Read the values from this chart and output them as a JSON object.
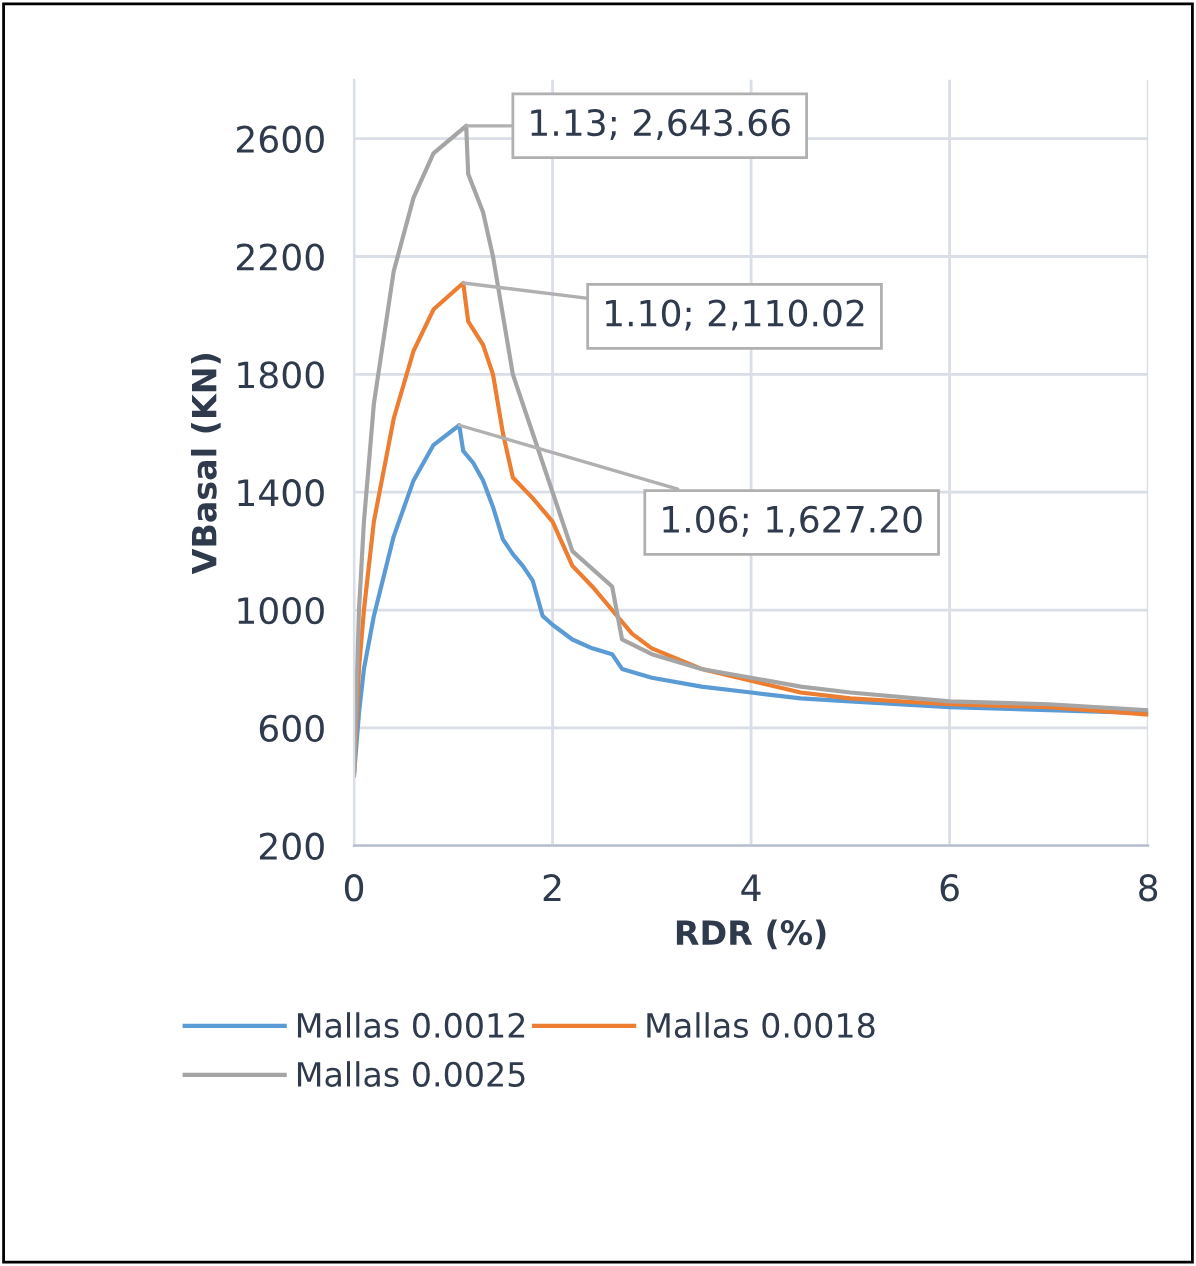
{
  "chart_data": {
    "type": "line",
    "xlabel": "RDR (%)",
    "ylabel": "VBasal (KN)",
    "xlim": [
      0,
      8
    ],
    "xticks": [
      0,
      2,
      4,
      6,
      8
    ],
    "ylim": [
      200,
      2800
    ],
    "yticks": [
      200,
      600,
      1000,
      1400,
      1800,
      2200,
      2600
    ],
    "grid": true,
    "legend": "bottom",
    "marker": "none",
    "line_style": "solid",
    "series": [
      {
        "name": "Mallas 0.0012",
        "color": "#5b9bd5",
        "x": [
          0,
          0.05,
          0.1,
          0.2,
          0.4,
          0.6,
          0.8,
          1.06,
          1.1,
          1.2,
          1.3,
          1.4,
          1.5,
          1.6,
          1.7,
          1.8,
          1.9,
          2.0,
          2.2,
          2.4,
          2.6,
          2.7,
          3.0,
          3.5,
          4,
          4.5,
          5,
          6,
          7,
          8
        ],
        "values": [
          440,
          650,
          800,
          980,
          1250,
          1440,
          1560,
          1627.2,
          1540,
          1500,
          1440,
          1350,
          1240,
          1190,
          1150,
          1100,
          980,
          950,
          900,
          870,
          850,
          800,
          770,
          740,
          720,
          700,
          690,
          670,
          660,
          650
        ]
      },
      {
        "name": "Mallas 0.0018",
        "color": "#ed7d31",
        "x": [
          0,
          0.05,
          0.1,
          0.2,
          0.4,
          0.6,
          0.8,
          1.1,
          1.15,
          1.3,
          1.4,
          1.5,
          1.6,
          1.8,
          2.0,
          2.2,
          2.4,
          2.6,
          2.8,
          3.0,
          3.5,
          4,
          4.5,
          5,
          6,
          7,
          8
        ],
        "values": [
          440,
          800,
          1000,
          1300,
          1650,
          1880,
          2020,
          2110.02,
          1980,
          1900,
          1800,
          1600,
          1450,
          1380,
          1300,
          1150,
          1080,
          1000,
          920,
          870,
          800,
          760,
          720,
          700,
          680,
          670,
          645
        ]
      },
      {
        "name": "Mallas 0.0025",
        "color": "#a5a5a5",
        "x": [
          0,
          0.05,
          0.1,
          0.2,
          0.4,
          0.6,
          0.8,
          1.13,
          1.15,
          1.3,
          1.4,
          1.5,
          1.6,
          1.8,
          2.0,
          2.2,
          2.6,
          2.7,
          3.0,
          3.5,
          4,
          4.5,
          5,
          6,
          7,
          8
        ],
        "values": [
          440,
          1000,
          1300,
          1700,
          2150,
          2400,
          2550,
          2643.66,
          2480,
          2350,
          2200,
          2000,
          1800,
          1600,
          1400,
          1200,
          1080,
          900,
          850,
          800,
          770,
          740,
          720,
          690,
          680,
          660
        ]
      }
    ],
    "annotations": [
      {
        "text": "1.13; 2,643.66",
        "x": 1.13,
        "y": 2643.66
      },
      {
        "text": "1.10; 2,110.02",
        "x": 1.1,
        "y": 2110.02
      },
      {
        "text": "1.06; 1,627.20",
        "x": 1.06,
        "y": 1627.2
      }
    ]
  }
}
